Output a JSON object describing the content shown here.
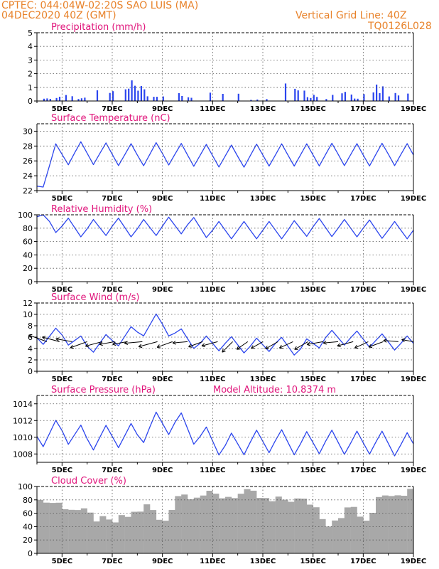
{
  "header": {
    "line1": "CPTEC:   044:04W-02:20S   SAO LUIS (MA)",
    "line2": "04DEC2020 40Z (GMT)",
    "grid_note": "Vertical Grid Line: 40Z",
    "code": "TQ0126L028"
  },
  "colors": {
    "header": "#e8822a",
    "title": "#e0157b",
    "series": "#2b45ee",
    "cloud": "#a8a8a8",
    "wind_arrow": "#000000"
  },
  "x_axis": {
    "start_day": 4,
    "end_day": 19,
    "tick_days": [
      5,
      7,
      9,
      11,
      13,
      15,
      17,
      19
    ],
    "tick_labels": [
      "5DEC",
      "7DEC",
      "9DEC",
      "11DEC",
      "13DEC",
      "15DEC",
      "17DEC",
      "19DEC"
    ]
  },
  "chart_data": [
    {
      "id": "precip",
      "type": "bar",
      "title": "Precipitation (mm/h)",
      "ylim": [
        0,
        5
      ],
      "yticks": [
        0,
        1,
        2,
        3,
        4,
        5
      ],
      "grid": true,
      "extra_label": "",
      "profile": {
        "base": 0.0,
        "amp": 0.0,
        "days": [
          4.2,
          5.2,
          5.6,
          6.3,
          6.8,
          7.2,
          7.6,
          8.0,
          8.4,
          8.9,
          9.5,
          10.4,
          10.8,
          11.3,
          11.8,
          12.4,
          13.0,
          13.5,
          14.0,
          14.5,
          15.1,
          15.6,
          16.2,
          16.8,
          17.3,
          17.8,
          18.3,
          18.8
        ],
        "vals": [
          0.1,
          0.45,
          0.35,
          0.3,
          1.6,
          0.5,
          0.9,
          1.7,
          0.6,
          0.8,
          0.9,
          0.4,
          0.7,
          0.8,
          0.9,
          0.3,
          0.1,
          0.8,
          1.3,
          0.7,
          0.6,
          0.3,
          0.6,
          0.5,
          0.9,
          1.1,
          0.6,
          1.0
        ]
      }
    },
    {
      "id": "temp",
      "type": "line",
      "title": "Surface Temperature (nC)",
      "ylim": [
        22,
        31
      ],
      "yticks": [
        22,
        24,
        26,
        28,
        30
      ],
      "grid": true,
      "extra_label": "",
      "profile": {
        "base": 26.8,
        "amp": 1.5,
        "days": [
          4.0,
          4.4,
          4.75,
          5.6,
          6.9,
          8.0,
          9.0,
          10.0,
          11.0,
          12.0,
          13.0,
          14.0,
          15.0,
          16.0,
          17.0,
          18.0,
          19.0
        ],
        "vals": [
          -4.2,
          -2.0,
          0.0,
          0.3,
          0.1,
          0.0,
          0.2,
          0.0,
          -0.1,
          -0.2,
          0.0,
          0.0,
          0.0,
          0.1,
          0.0,
          0.1,
          0.0
        ]
      }
    },
    {
      "id": "rh",
      "type": "line",
      "title": "Relative Humidity (%)",
      "ylim": [
        0,
        100
      ],
      "yticks": [
        0,
        20,
        40,
        60,
        80,
        100
      ],
      "grid": true,
      "extra_label": "",
      "profile": {
        "base": 77,
        "amp": -13,
        "days": [
          4.0,
          5.0,
          6.0,
          7.0,
          8.0,
          9.0,
          10.0,
          11.0,
          12.0,
          13.0,
          14.0,
          15.0,
          16.0,
          17.0,
          18.0,
          19.0
        ],
        "vals": [
          20,
          6,
          2,
          6,
          2,
          6,
          8,
          0,
          0,
          0,
          0,
          5,
          3,
          3,
          0,
          0
        ]
      }
    },
    {
      "id": "wind",
      "type": "line",
      "title": "Surface Wind (m/s)",
      "ylim": [
        0,
        12
      ],
      "yticks": [
        0,
        2,
        4,
        6,
        8,
        10,
        12
      ],
      "grid": true,
      "extra_label": "",
      "profile": {
        "base": 5.4,
        "amp": 1.3,
        "days": [
          4.0,
          5.0,
          6.0,
          7.0,
          8.0,
          8.8,
          9.6,
          10.5,
          11.5,
          12.5,
          13.5,
          14.5,
          15.5,
          16.5,
          17.5,
          18.5,
          19.0
        ],
        "vals": [
          0.5,
          1.0,
          -1.0,
          0.0,
          1.5,
          3.5,
          1.0,
          -0.5,
          -0.5,
          -1.0,
          -0.5,
          -1.5,
          0.5,
          0.5,
          0.0,
          -0.5,
          -0.5
        ]
      }
    },
    {
      "id": "press",
      "type": "line",
      "title": "Surface Pressure (hPa)",
      "ylim": [
        1007,
        1015
      ],
      "yticks": [
        1008,
        1010,
        1012,
        1014
      ],
      "grid": true,
      "extra_label": "Model Altitude: 10.8374 m",
      "profile": {
        "base": 1009.6,
        "amp": 1.4,
        "days": [
          4.0,
          5.0,
          6.0,
          7.0,
          8.0,
          8.7,
          9.6,
          10.5,
          11.5,
          12.5,
          13.5,
          14.5,
          15.5,
          16.5,
          17.5,
          18.5,
          19.0
        ],
        "vals": [
          0.5,
          1.2,
          0.2,
          0.5,
          0.7,
          2.0,
          2.2,
          0.5,
          -0.6,
          -0.2,
          0.0,
          -0.4,
          -0.1,
          -0.3,
          -0.2,
          -0.5,
          -0.4
        ]
      }
    },
    {
      "id": "cloud",
      "type": "bar",
      "title": "Cloud Cover (%)",
      "ylim": [
        0,
        100
      ],
      "yticks": [
        0,
        20,
        40,
        60,
        80,
        100
      ],
      "grid": true,
      "extra_label": "",
      "profile": {
        "base": 0,
        "amp": 0,
        "days": [
          4.0,
          4.8,
          5.8,
          6.5,
          7.0,
          7.6,
          8.5,
          9.0,
          9.6,
          10.5,
          11.5,
          12.5,
          13.3,
          14.0,
          15.0,
          15.6,
          16.6,
          17.2,
          17.6,
          18.5,
          19.0
        ],
        "vals": [
          80,
          75,
          62,
          50,
          45,
          55,
          72,
          40,
          88,
          88,
          85,
          90,
          76,
          82,
          75,
          45,
          70,
          40,
          88,
          92,
          92
        ]
      }
    }
  ],
  "wind_vectors": {
    "days": [
      4.4,
      4.9,
      5.4,
      6.0,
      6.6,
      7.1,
      7.6,
      8.2,
      8.8,
      9.4,
      10.0,
      10.6,
      11.2,
      11.8,
      12.4,
      13.0,
      13.6,
      14.2,
      14.8,
      15.4,
      16.0,
      16.6,
      17.2,
      17.8,
      18.4,
      19.0
    ],
    "angles_deg": [
      160,
      165,
      170,
      200,
      195,
      190,
      190,
      185,
      195,
      200,
      185,
      200,
      195,
      225,
      215,
      210,
      210,
      205,
      210,
      190,
      185,
      195,
      205,
      200,
      175,
      170
    ],
    "lengths_ms": [
      6.5,
      6.0,
      5.5,
      6.0,
      5.8,
      5.2,
      5.0,
      6.0,
      6.5,
      5.5,
      5.0,
      5.0,
      5.5,
      5.0,
      4.5,
      4.5,
      4.8,
      5.0,
      5.2,
      5.5,
      5.0,
      5.5,
      5.0,
      5.2,
      5.0,
      4.0
    ]
  }
}
